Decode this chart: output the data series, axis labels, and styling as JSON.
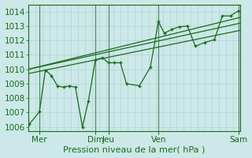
{
  "background_color": "#cce8e8",
  "grid_color_h": "#b0d4d4",
  "grid_color_v": "#b0d4d4",
  "vline_color": "#5a8a6a",
  "line_color": "#1a6b1a",
  "marker_color": "#1a6b1a",
  "ylabel_values": [
    1006,
    1007,
    1008,
    1009,
    1010,
    1011,
    1012,
    1013,
    1014
  ],
  "ylim": [
    1005.7,
    1014.5
  ],
  "xlabel": "Pression niveau de la mer( hPa )",
  "xlim": [
    0,
    10.6
  ],
  "line1_x": [
    0.05,
    0.55,
    0.85,
    1.15,
    1.45,
    1.75,
    2.05,
    2.35,
    2.7,
    3.0,
    3.35,
    3.7,
    4.0,
    4.3,
    4.6,
    4.9,
    5.55,
    6.1,
    6.5,
    6.8,
    7.15,
    7.55,
    7.95,
    8.35,
    8.8,
    9.3,
    9.7,
    10.1,
    10.5
  ],
  "line1_y": [
    1006.2,
    1007.05,
    1009.95,
    1009.55,
    1008.85,
    1008.75,
    1008.85,
    1008.75,
    1006.0,
    1007.8,
    1010.65,
    1010.8,
    1010.45,
    1010.45,
    1010.45,
    1009.0,
    1008.85,
    1010.15,
    1013.3,
    1012.5,
    1012.75,
    1012.95,
    1013.0,
    1011.6,
    1011.85,
    1012.05,
    1013.7,
    1013.7,
    1014.05
  ],
  "line2_x": [
    0.0,
    10.6
  ],
  "line2_y": [
    1010.0,
    1013.6
  ],
  "line3_x": [
    0.0,
    10.6
  ],
  "line3_y": [
    1010.0,
    1013.2
  ],
  "line4_x": [
    0.0,
    10.6
  ],
  "line4_y": [
    1009.7,
    1012.7
  ],
  "vlines_x": [
    0.55,
    3.35,
    4.0,
    6.5,
    10.5
  ],
  "xtick_pos": [
    0.55,
    3.35,
    4.0,
    6.5,
    10.5
  ],
  "xtick_labels": [
    "Mer",
    "Dim",
    "Jeu",
    "Ven",
    "Sam"
  ],
  "font_color": "#1a6b1a",
  "font_size": 7.5
}
